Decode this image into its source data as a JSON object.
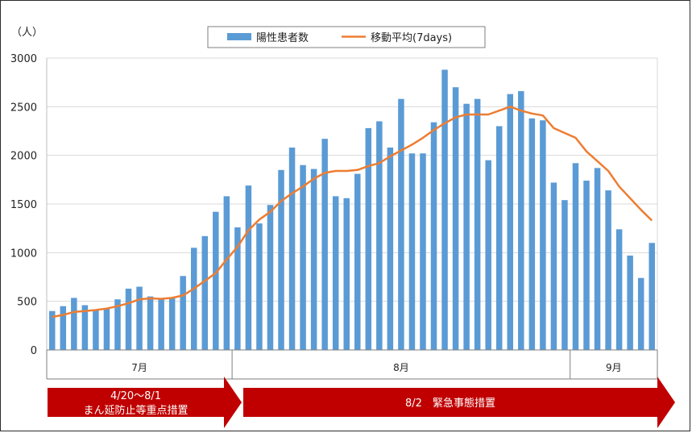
{
  "chart_data": {
    "type": "bar",
    "unit_label": "（人）",
    "ylim": [
      0,
      3000
    ],
    "yticks": [
      0,
      500,
      1000,
      1500,
      2000,
      2500,
      3000
    ],
    "grid": true,
    "legend_position": "top-center",
    "series": [
      {
        "name": "陽性患者数",
        "type": "bar",
        "color": "#5B9BD5",
        "values": [
          400,
          450,
          535,
          460,
          410,
          430,
          520,
          630,
          650,
          550,
          530,
          540,
          760,
          1050,
          1170,
          1420,
          1580,
          1260,
          1690,
          1300,
          1490,
          1850,
          2080,
          1900,
          1860,
          2170,
          1580,
          1560,
          1810,
          2280,
          2350,
          2080,
          2580,
          2020,
          2020,
          2340,
          2880,
          2700,
          2530,
          2580,
          1950,
          2300,
          2630,
          2660,
          2380,
          2360,
          1720,
          1540,
          1920,
          1740,
          1870,
          1640,
          1240,
          970,
          740,
          1100
        ]
      },
      {
        "name": "移動平均(7days)",
        "type": "line",
        "color": "#ED7D31",
        "values": [
          340,
          360,
          390,
          400,
          410,
          425,
          450,
          480,
          520,
          530,
          525,
          535,
          560,
          630,
          710,
          790,
          930,
          1060,
          1230,
          1340,
          1420,
          1530,
          1610,
          1680,
          1760,
          1820,
          1840,
          1840,
          1850,
          1890,
          1920,
          1990,
          2050,
          2110,
          2180,
          2260,
          2330,
          2390,
          2420,
          2420,
          2420,
          2460,
          2500,
          2460,
          2430,
          2410,
          2280,
          2230,
          2180,
          2040,
          1940,
          1840,
          1680,
          1560,
          1440,
          1330
        ]
      }
    ],
    "month_labels": [
      {
        "label": "7月",
        "start": 0,
        "end": 17
      },
      {
        "label": "8月",
        "start": 17,
        "end": 48
      },
      {
        "label": "9月",
        "start": 48,
        "end": 56
      }
    ],
    "periods": [
      {
        "line1": "4/20～8/1",
        "line2": "まん延防止等重点措置",
        "start": 0,
        "end": 17,
        "color": "#C00000"
      },
      {
        "line1": "8/2　緊急事態措置",
        "line2": "",
        "start": 17,
        "end": 56,
        "color": "#C00000"
      }
    ]
  }
}
